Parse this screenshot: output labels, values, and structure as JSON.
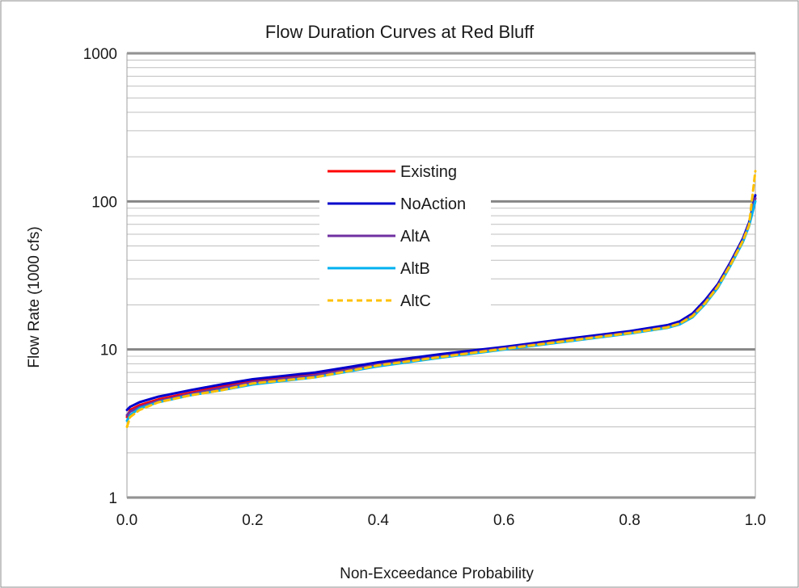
{
  "chart_data": {
    "type": "line",
    "title": "Flow Duration Curves at Red Bluff",
    "xlabel": "Non-Exceedance Probability",
    "ylabel": "Flow Rate (1000 cfs)",
    "xlim": [
      0,
      1
    ],
    "ylim": [
      1,
      1000
    ],
    "y_scale": "log",
    "x_ticks": [
      "0.0",
      "0.2",
      "0.4",
      "0.6",
      "0.8",
      "1.0"
    ],
    "y_ticks": [
      "1",
      "10",
      "100",
      "1000"
    ],
    "grid": true,
    "legend_position": "center-left",
    "series": [
      {
        "name": "Existing",
        "color": "#ff0000",
        "dash": false,
        "x": [
          0.0,
          0.005,
          0.02,
          0.05,
          0.1,
          0.15,
          0.2,
          0.3,
          0.4,
          0.5,
          0.6,
          0.7,
          0.8,
          0.86,
          0.88,
          0.9,
          0.92,
          0.94,
          0.96,
          0.98,
          0.99,
          1.0
        ],
        "y": [
          3.5,
          3.9,
          4.2,
          4.6,
          5.1,
          5.6,
          6.1,
          6.8,
          8.0,
          9.1,
          10.3,
          11.6,
          13.1,
          14.3,
          15.2,
          17.2,
          21.0,
          27.0,
          38.0,
          55.0,
          70.0,
          105.0
        ]
      },
      {
        "name": "NoAction",
        "color": "#0000cc",
        "dash": false,
        "x": [
          0.0,
          0.005,
          0.02,
          0.05,
          0.1,
          0.15,
          0.2,
          0.3,
          0.4,
          0.5,
          0.6,
          0.7,
          0.8,
          0.86,
          0.88,
          0.9,
          0.92,
          0.94,
          0.96,
          0.98,
          0.99,
          1.0
        ],
        "y": [
          3.9,
          4.1,
          4.4,
          4.8,
          5.3,
          5.8,
          6.3,
          7.0,
          8.2,
          9.3,
          10.4,
          11.8,
          13.3,
          14.6,
          15.5,
          17.5,
          21.5,
          27.5,
          38.5,
          56.0,
          72.0,
          110.0
        ]
      },
      {
        "name": "AltA",
        "color": "#7030a0",
        "dash": false,
        "x": [
          0.0,
          0.005,
          0.02,
          0.05,
          0.1,
          0.15,
          0.2,
          0.3,
          0.4,
          0.5,
          0.6,
          0.7,
          0.8,
          0.86,
          0.88,
          0.9,
          0.92,
          0.94,
          0.96,
          0.98,
          0.99,
          1.0
        ],
        "y": [
          3.6,
          3.8,
          4.1,
          4.5,
          5.0,
          5.5,
          6.0,
          6.7,
          7.9,
          9.0,
          10.2,
          11.5,
          13.0,
          14.2,
          15.0,
          17.0,
          20.8,
          26.8,
          37.5,
          54.5,
          70.0,
          105.0
        ]
      },
      {
        "name": "AltB",
        "color": "#00b0f0",
        "dash": false,
        "x": [
          0.0,
          0.005,
          0.02,
          0.05,
          0.1,
          0.15,
          0.2,
          0.3,
          0.4,
          0.5,
          0.6,
          0.7,
          0.8,
          0.86,
          0.88,
          0.9,
          0.92,
          0.94,
          0.96,
          0.98,
          0.99,
          1.0
        ],
        "y": [
          3.3,
          3.6,
          4.0,
          4.4,
          4.9,
          5.3,
          5.8,
          6.5,
          7.7,
          8.8,
          10.0,
          11.3,
          12.8,
          14.0,
          14.8,
          16.5,
          20.2,
          26.0,
          36.5,
          53.0,
          68.0,
          100.0
        ]
      },
      {
        "name": "AltC",
        "color": "#ffc000",
        "dash": true,
        "x": [
          0.0,
          0.005,
          0.02,
          0.05,
          0.1,
          0.15,
          0.2,
          0.3,
          0.4,
          0.5,
          0.6,
          0.7,
          0.8,
          0.86,
          0.88,
          0.9,
          0.92,
          0.94,
          0.96,
          0.98,
          0.99,
          1.0
        ],
        "y": [
          3.0,
          3.5,
          3.9,
          4.4,
          4.9,
          5.3,
          5.9,
          6.5,
          7.8,
          8.9,
          10.1,
          11.4,
          12.9,
          14.1,
          15.0,
          16.8,
          20.5,
          26.5,
          37.0,
          54.0,
          69.0,
          160.0
        ]
      }
    ]
  }
}
